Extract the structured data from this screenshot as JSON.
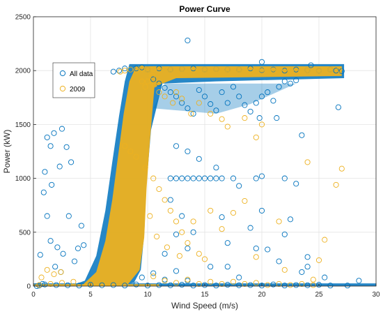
{
  "chart_data": {
    "type": "scatter",
    "title": "Power Curve",
    "xlabel": "Wind Speed (m/s)",
    "ylabel": "Power (kW)",
    "xlim": [
      0,
      30
    ],
    "ylim": [
      0,
      2500
    ],
    "xticks": [
      0,
      5,
      10,
      15,
      20,
      25,
      30
    ],
    "yticks": [
      0,
      500,
      1000,
      1500,
      2000,
      2500
    ],
    "grid": true,
    "legend_position": "upper-left",
    "marker": "open-circle",
    "series": [
      {
        "name": "All data",
        "color": "#0072BD",
        "points": [
          [
            0.3,
            0
          ],
          [
            0.8,
            20
          ],
          [
            1.2,
            1380
          ],
          [
            1.5,
            1300
          ],
          [
            1.8,
            1420
          ],
          [
            2.5,
            1460
          ],
          [
            2.9,
            1290
          ],
          [
            1.0,
            1060
          ],
          [
            1.6,
            940
          ],
          [
            0.9,
            870
          ],
          [
            1.2,
            650
          ],
          [
            1.5,
            420
          ],
          [
            2.1,
            360
          ],
          [
            2.6,
            300
          ],
          [
            3.3,
            1150
          ],
          [
            2.3,
            1110
          ],
          [
            3.1,
            650
          ],
          [
            1.9,
            180
          ],
          [
            2.4,
            130
          ],
          [
            0.6,
            290
          ],
          [
            3.6,
            230
          ],
          [
            3.9,
            350
          ],
          [
            4.2,
            560
          ],
          [
            4.4,
            380
          ],
          [
            7.0,
            1990
          ],
          [
            7.5,
            2000
          ],
          [
            8.0,
            2020
          ],
          [
            8.5,
            2010
          ],
          [
            9.0,
            2020
          ],
          [
            9.5,
            2030
          ],
          [
            10.0,
            2010
          ],
          [
            11.0,
            2020
          ],
          [
            12.0,
            2010
          ],
          [
            13.0,
            2015
          ],
          [
            14.0,
            2020
          ],
          [
            15.0,
            2010
          ],
          [
            16.0,
            2015
          ],
          [
            17.0,
            2010
          ],
          [
            18.0,
            2010
          ],
          [
            19.0,
            2020
          ],
          [
            20.0,
            2005
          ],
          [
            21.0,
            2010
          ],
          [
            22.0,
            2000
          ],
          [
            23.0,
            2010
          ],
          [
            24.0,
            2005
          ],
          [
            25.0,
            2000
          ],
          [
            26.0,
            2010
          ],
          [
            26.5,
            2000
          ],
          [
            27.0,
            1995
          ],
          [
            13.5,
            2280
          ],
          [
            26.7,
            1660
          ],
          [
            28.5,
            50
          ],
          [
            20.0,
            2080
          ],
          [
            24.3,
            2050
          ],
          [
            10.5,
            1920
          ],
          [
            11.0,
            1880
          ],
          [
            11.5,
            1840
          ],
          [
            12.0,
            1800
          ],
          [
            12.5,
            1760
          ],
          [
            13.0,
            1700
          ],
          [
            13.5,
            1650
          ],
          [
            14.0,
            1600
          ],
          [
            14.5,
            1820
          ],
          [
            15.0,
            1760
          ],
          [
            15.5,
            1690
          ],
          [
            16.0,
            1630
          ],
          [
            16.5,
            1800
          ],
          [
            17.0,
            1700
          ],
          [
            17.5,
            1850
          ],
          [
            18.0,
            1760
          ],
          [
            18.5,
            1680
          ],
          [
            19.0,
            1620
          ],
          [
            19.5,
            1700
          ],
          [
            20.0,
            1760
          ],
          [
            20.5,
            1800
          ],
          [
            21.0,
            1720
          ],
          [
            21.5,
            1850
          ],
          [
            22.0,
            1900
          ],
          [
            22.5,
            1880
          ],
          [
            23.0,
            1910
          ],
          [
            19.8,
            1560
          ],
          [
            21.3,
            1560
          ],
          [
            12.0,
            1000
          ],
          [
            12.5,
            1000
          ],
          [
            13.0,
            1000
          ],
          [
            13.5,
            1000
          ],
          [
            14.0,
            1000
          ],
          [
            14.5,
            1000
          ],
          [
            15.0,
            1000
          ],
          [
            15.5,
            1000
          ],
          [
            16.0,
            1000
          ],
          [
            16.5,
            1000
          ],
          [
            17.5,
            1000
          ],
          [
            19.5,
            1000
          ],
          [
            20.0,
            1020
          ],
          [
            23.5,
            1400
          ],
          [
            22.0,
            1000
          ],
          [
            23.0,
            950
          ],
          [
            12.5,
            1300
          ],
          [
            13.5,
            1250
          ],
          [
            14.5,
            1180
          ],
          [
            16.0,
            1100
          ],
          [
            18.0,
            930
          ],
          [
            20.0,
            700
          ],
          [
            22.0,
            480
          ],
          [
            24.0,
            180
          ],
          [
            12.0,
            800
          ],
          [
            13.0,
            650
          ],
          [
            14.0,
            500
          ],
          [
            16.5,
            640
          ],
          [
            17.0,
            400
          ],
          [
            19.0,
            540
          ],
          [
            20.5,
            340
          ],
          [
            21.5,
            230
          ],
          [
            23.5,
            130
          ],
          [
            25.5,
            80
          ],
          [
            11.5,
            300
          ],
          [
            12.5,
            480
          ],
          [
            13.5,
            350
          ],
          [
            15.5,
            180
          ],
          [
            17.0,
            180
          ],
          [
            18.0,
            80
          ],
          [
            19.5,
            350
          ],
          [
            22.5,
            620
          ],
          [
            24.0,
            270
          ],
          [
            0.5,
            5
          ],
          [
            2,
            10
          ],
          [
            4,
            5
          ],
          [
            6,
            8
          ],
          [
            8,
            5
          ],
          [
            10,
            5
          ],
          [
            12,
            8
          ],
          [
            14,
            5
          ],
          [
            16,
            5
          ],
          [
            18,
            8
          ],
          [
            20,
            5
          ],
          [
            22,
            5
          ],
          [
            24,
            8
          ],
          [
            26,
            5
          ],
          [
            27.5,
            5
          ],
          [
            1,
            15
          ],
          [
            3,
            8
          ],
          [
            5,
            12
          ],
          [
            7,
            10
          ],
          [
            9,
            15
          ],
          [
            11,
            10
          ],
          [
            13,
            12
          ],
          [
            15,
            10
          ],
          [
            17,
            12
          ],
          [
            19,
            10
          ],
          [
            21,
            15
          ],
          [
            23,
            10
          ],
          [
            25,
            12
          ],
          [
            9.5,
            80
          ],
          [
            10.5,
            120
          ],
          [
            11.5,
            60
          ],
          [
            12.5,
            140
          ],
          [
            13.5,
            50
          ]
        ]
      },
      {
        "name": "2009",
        "color": "#EDB120",
        "points": [
          [
            7.6,
            1990
          ],
          [
            8.0,
            2000
          ],
          [
            8.5,
            2010
          ],
          [
            9.0,
            2010
          ],
          [
            9.5,
            2020
          ],
          [
            10.0,
            2010
          ],
          [
            10.5,
            2015
          ],
          [
            11.0,
            2010
          ],
          [
            12.0,
            2010
          ],
          [
            13.0,
            2015
          ],
          [
            14.0,
            2010
          ],
          [
            15.0,
            2010
          ],
          [
            16.0,
            2015
          ],
          [
            17.0,
            2010
          ],
          [
            18.0,
            2010
          ],
          [
            19.0,
            2010
          ],
          [
            20.0,
            2010
          ],
          [
            21.0,
            2005
          ],
          [
            22.0,
            2010
          ],
          [
            23.0,
            2000
          ],
          [
            24.0,
            2005
          ],
          [
            25.0,
            2000
          ],
          [
            26.0,
            2010
          ],
          [
            26.8,
            2010
          ],
          [
            9.5,
            1900
          ],
          [
            9.8,
            1850
          ],
          [
            10.0,
            1900
          ],
          [
            10.4,
            1950
          ],
          [
            10.6,
            1870
          ],
          [
            11.0,
            1800
          ],
          [
            11.5,
            1760
          ],
          [
            12.2,
            1700
          ],
          [
            12.5,
            1800
          ],
          [
            13.0,
            1740
          ],
          [
            13.8,
            1600
          ],
          [
            14.5,
            1700
          ],
          [
            15.5,
            1600
          ],
          [
            16.5,
            1550
          ],
          [
            17.0,
            1480
          ],
          [
            18.5,
            1560
          ],
          [
            20.0,
            1500
          ],
          [
            19.5,
            1380
          ],
          [
            8.0,
            1300
          ],
          [
            8.5,
            1250
          ],
          [
            9.0,
            1200
          ],
          [
            9.8,
            1100
          ],
          [
            10.5,
            1000
          ],
          [
            11.0,
            900
          ],
          [
            11.5,
            800
          ],
          [
            12.0,
            700
          ],
          [
            12.5,
            600
          ],
          [
            13.0,
            500
          ],
          [
            13.5,
            400
          ],
          [
            14.5,
            300
          ],
          [
            15.0,
            250
          ],
          [
            10.2,
            650
          ],
          [
            10.8,
            460
          ],
          [
            11.7,
            360
          ],
          [
            12.8,
            280
          ],
          [
            14.0,
            600
          ],
          [
            15.5,
            700
          ],
          [
            16.5,
            530
          ],
          [
            17.5,
            680
          ],
          [
            18.5,
            790
          ],
          [
            21.5,
            600
          ],
          [
            24.0,
            1150
          ],
          [
            25.5,
            430
          ],
          [
            26.5,
            940
          ],
          [
            27.0,
            1090
          ],
          [
            25.0,
            240
          ],
          [
            24.5,
            60
          ],
          [
            22.0,
            150
          ],
          [
            19.5,
            270
          ],
          [
            10.5,
            90
          ],
          [
            11.5,
            50
          ],
          [
            12.5,
            30
          ],
          [
            13.5,
            60
          ],
          [
            14.5,
            20
          ],
          [
            15.5,
            40
          ],
          [
            16.5,
            20
          ],
          [
            17.5,
            40
          ],
          [
            18.5,
            20
          ],
          [
            19.5,
            30
          ],
          [
            20.5,
            10
          ],
          [
            21.5,
            20
          ],
          [
            22.5,
            10
          ],
          [
            23.5,
            20
          ],
          [
            24.5,
            10
          ],
          [
            0.5,
            10
          ],
          [
            1.5,
            20
          ],
          [
            2.5,
            30
          ],
          [
            3.5,
            40
          ],
          [
            1.2,
            150
          ],
          [
            1.8,
            110
          ],
          [
            2.4,
            130
          ],
          [
            0.7,
            80
          ]
        ]
      }
    ]
  }
}
